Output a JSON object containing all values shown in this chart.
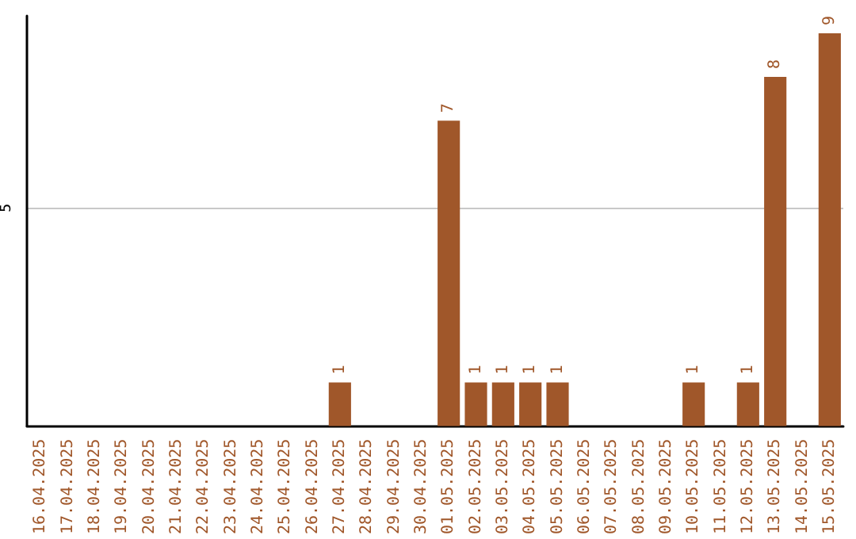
{
  "chart_data": {
    "type": "bar",
    "categories": [
      "16.04.2025",
      "17.04.2025",
      "18.04.2025",
      "19.04.2025",
      "20.04.2025",
      "21.04.2025",
      "22.04.2025",
      "23.04.2025",
      "24.04.2025",
      "25.04.2025",
      "26.04.2025",
      "27.04.2025",
      "28.04.2025",
      "29.04.2025",
      "30.04.2025",
      "01.05.2025",
      "02.05.2025",
      "03.05.2025",
      "04.05.2025",
      "05.05.2025",
      "06.05.2025",
      "07.05.2025",
      "08.05.2025",
      "09.05.2025",
      "10.05.2025",
      "11.05.2025",
      "12.05.2025",
      "13.05.2025",
      "14.05.2025",
      "15.05.2025"
    ],
    "values": [
      0,
      0,
      0,
      0,
      0,
      0,
      0,
      0,
      0,
      0,
      0,
      1,
      0,
      0,
      0,
      7,
      1,
      1,
      1,
      1,
      0,
      0,
      0,
      0,
      1,
      0,
      1,
      8,
      0,
      9
    ],
    "value_labels": [
      null,
      null,
      null,
      null,
      null,
      null,
      null,
      null,
      null,
      null,
      null,
      "1",
      null,
      null,
      null,
      "7",
      "1",
      "1",
      "1",
      "1",
      null,
      null,
      null,
      null,
      "1",
      null,
      "1",
      "8",
      null,
      "9"
    ],
    "color": "#a0572a",
    "ylim": [
      0,
      9.4
    ],
    "yticks": [
      5
    ],
    "grid": "y"
  }
}
